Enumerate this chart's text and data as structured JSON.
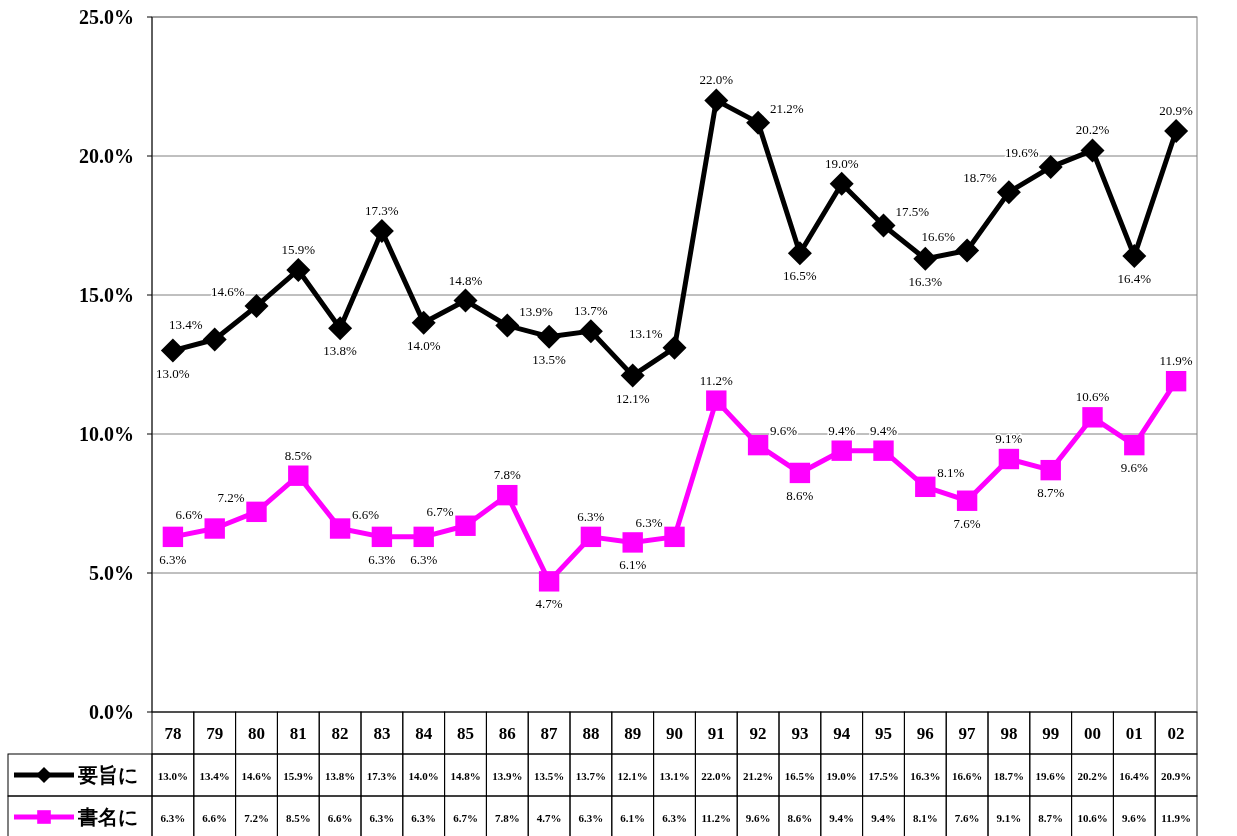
{
  "chart_data": {
    "type": "line",
    "categories": [
      "78",
      "79",
      "80",
      "81",
      "82",
      "83",
      "84",
      "85",
      "86",
      "87",
      "88",
      "89",
      "90",
      "91",
      "92",
      "93",
      "94",
      "95",
      "96",
      "97",
      "98",
      "99",
      "00",
      "01",
      "02"
    ],
    "series": [
      {
        "name": "要旨に",
        "color": "#000000",
        "marker": "diamond",
        "values": [
          13.0,
          13.4,
          14.6,
          15.9,
          13.8,
          17.3,
          14.0,
          14.8,
          13.9,
          13.5,
          13.7,
          12.1,
          13.1,
          22.0,
          21.2,
          16.5,
          19.0,
          17.5,
          16.3,
          16.6,
          18.7,
          19.6,
          20.2,
          16.4,
          20.9
        ],
        "value_labels": [
          "13.0%",
          "13.4%",
          "14.6%",
          "15.9%",
          "13.8%",
          "17.3%",
          "14.0%",
          "14.8%",
          "13.9%",
          "13.5%",
          "13.7%",
          "12.1%",
          "13.1%",
          "22.0%",
          "21.2%",
          "16.5%",
          "19.0%",
          "17.5%",
          "16.3%",
          "16.6%",
          "18.7%",
          "19.6%",
          "20.2%",
          "16.4%",
          "20.9%"
        ]
      },
      {
        "name": "書名に",
        "color": "#ff00ff",
        "marker": "square",
        "values": [
          6.3,
          6.6,
          7.2,
          8.5,
          6.6,
          6.3,
          6.3,
          6.7,
          7.8,
          4.7,
          6.3,
          6.1,
          6.3,
          11.2,
          9.6,
          8.6,
          9.4,
          9.4,
          8.1,
          7.6,
          9.1,
          8.7,
          10.6,
          9.6,
          11.9
        ],
        "value_labels": [
          "6.3%",
          "6.6%",
          "7.2%",
          "8.5%",
          "6.6%",
          "6.3%",
          "6.3%",
          "6.7%",
          "7.8%",
          "4.7%",
          "6.3%",
          "6.1%",
          "6.3%",
          "11.2%",
          "9.6%",
          "8.6%",
          "9.4%",
          "9.4%",
          "8.1%",
          "7.6%",
          "9.1%",
          "8.7%",
          "10.6%",
          "9.6%",
          "11.9%"
        ]
      }
    ],
    "ylim": [
      0,
      25
    ],
    "yticks": [
      {
        "value": 0,
        "label": "0.0%"
      },
      {
        "value": 5,
        "label": "5.0%"
      },
      {
        "value": 10,
        "label": "10.0%"
      },
      {
        "value": 15,
        "label": "15.0%"
      },
      {
        "value": 20,
        "label": "20.0%"
      },
      {
        "value": 25,
        "label": "25.0%"
      }
    ],
    "grid": "y",
    "legend": "bottom left",
    "line_style": "solid"
  }
}
